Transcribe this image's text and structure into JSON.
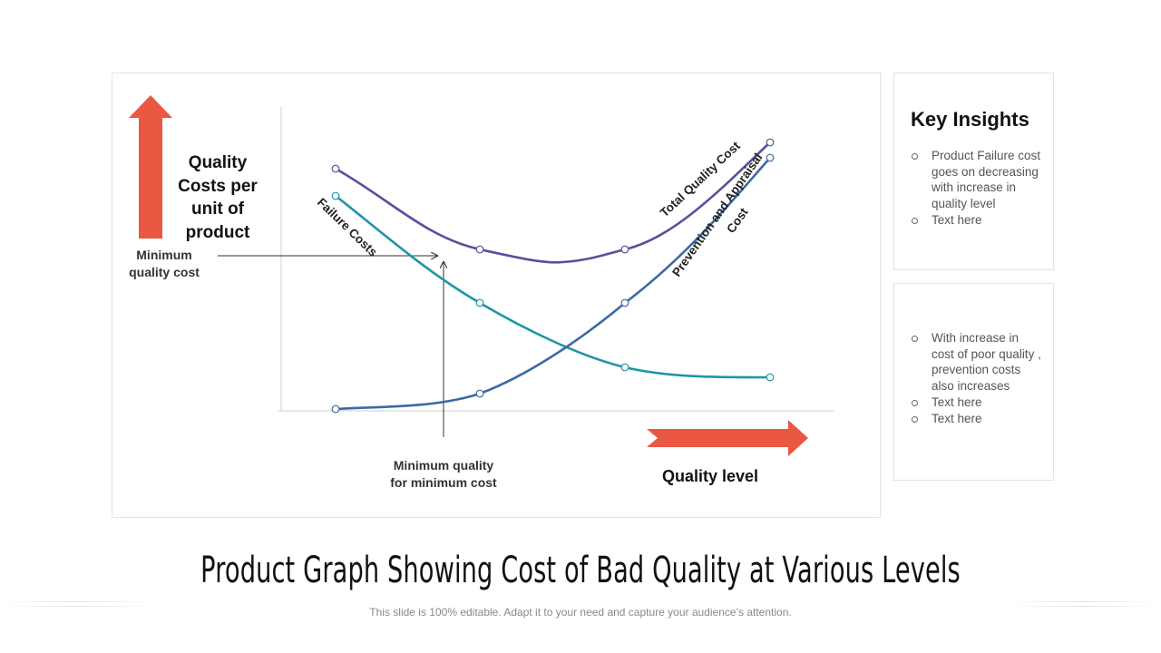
{
  "diagram": {
    "y_axis_label": "Quality Costs per unit of product",
    "x_axis_label": "Quality level",
    "annotation_min_cost": "Minimum quality cost",
    "annotation_min_quality": "Minimum quality for minimum cost",
    "curves": {
      "total_quality_cost": "Total Quality Cost",
      "failure_costs": "Failure Costs",
      "prevention_appraisal_line1": "Prevention and Appraisal",
      "prevention_appraisal_line2": "Cost"
    },
    "colors": {
      "total": "#5b4e9b",
      "failure": "#1f95a8",
      "prevention": "#3a6aa4",
      "arrow": "#ea5743"
    }
  },
  "insights": {
    "title": "Key Insights",
    "top_bullets": [
      "Product Failure cost goes on decreasing with increase in quality level",
      "Text here"
    ],
    "bottom_bullets": [
      "With increase in cost of poor quality , prevention costs also increases",
      "Text here",
      "Text here"
    ]
  },
  "footer": {
    "title": "Product Graph Showing Cost of Bad Quality at Various Levels",
    "subtitle": "This slide is 100% editable. Adapt it to your need and capture your audience’s attention."
  }
}
